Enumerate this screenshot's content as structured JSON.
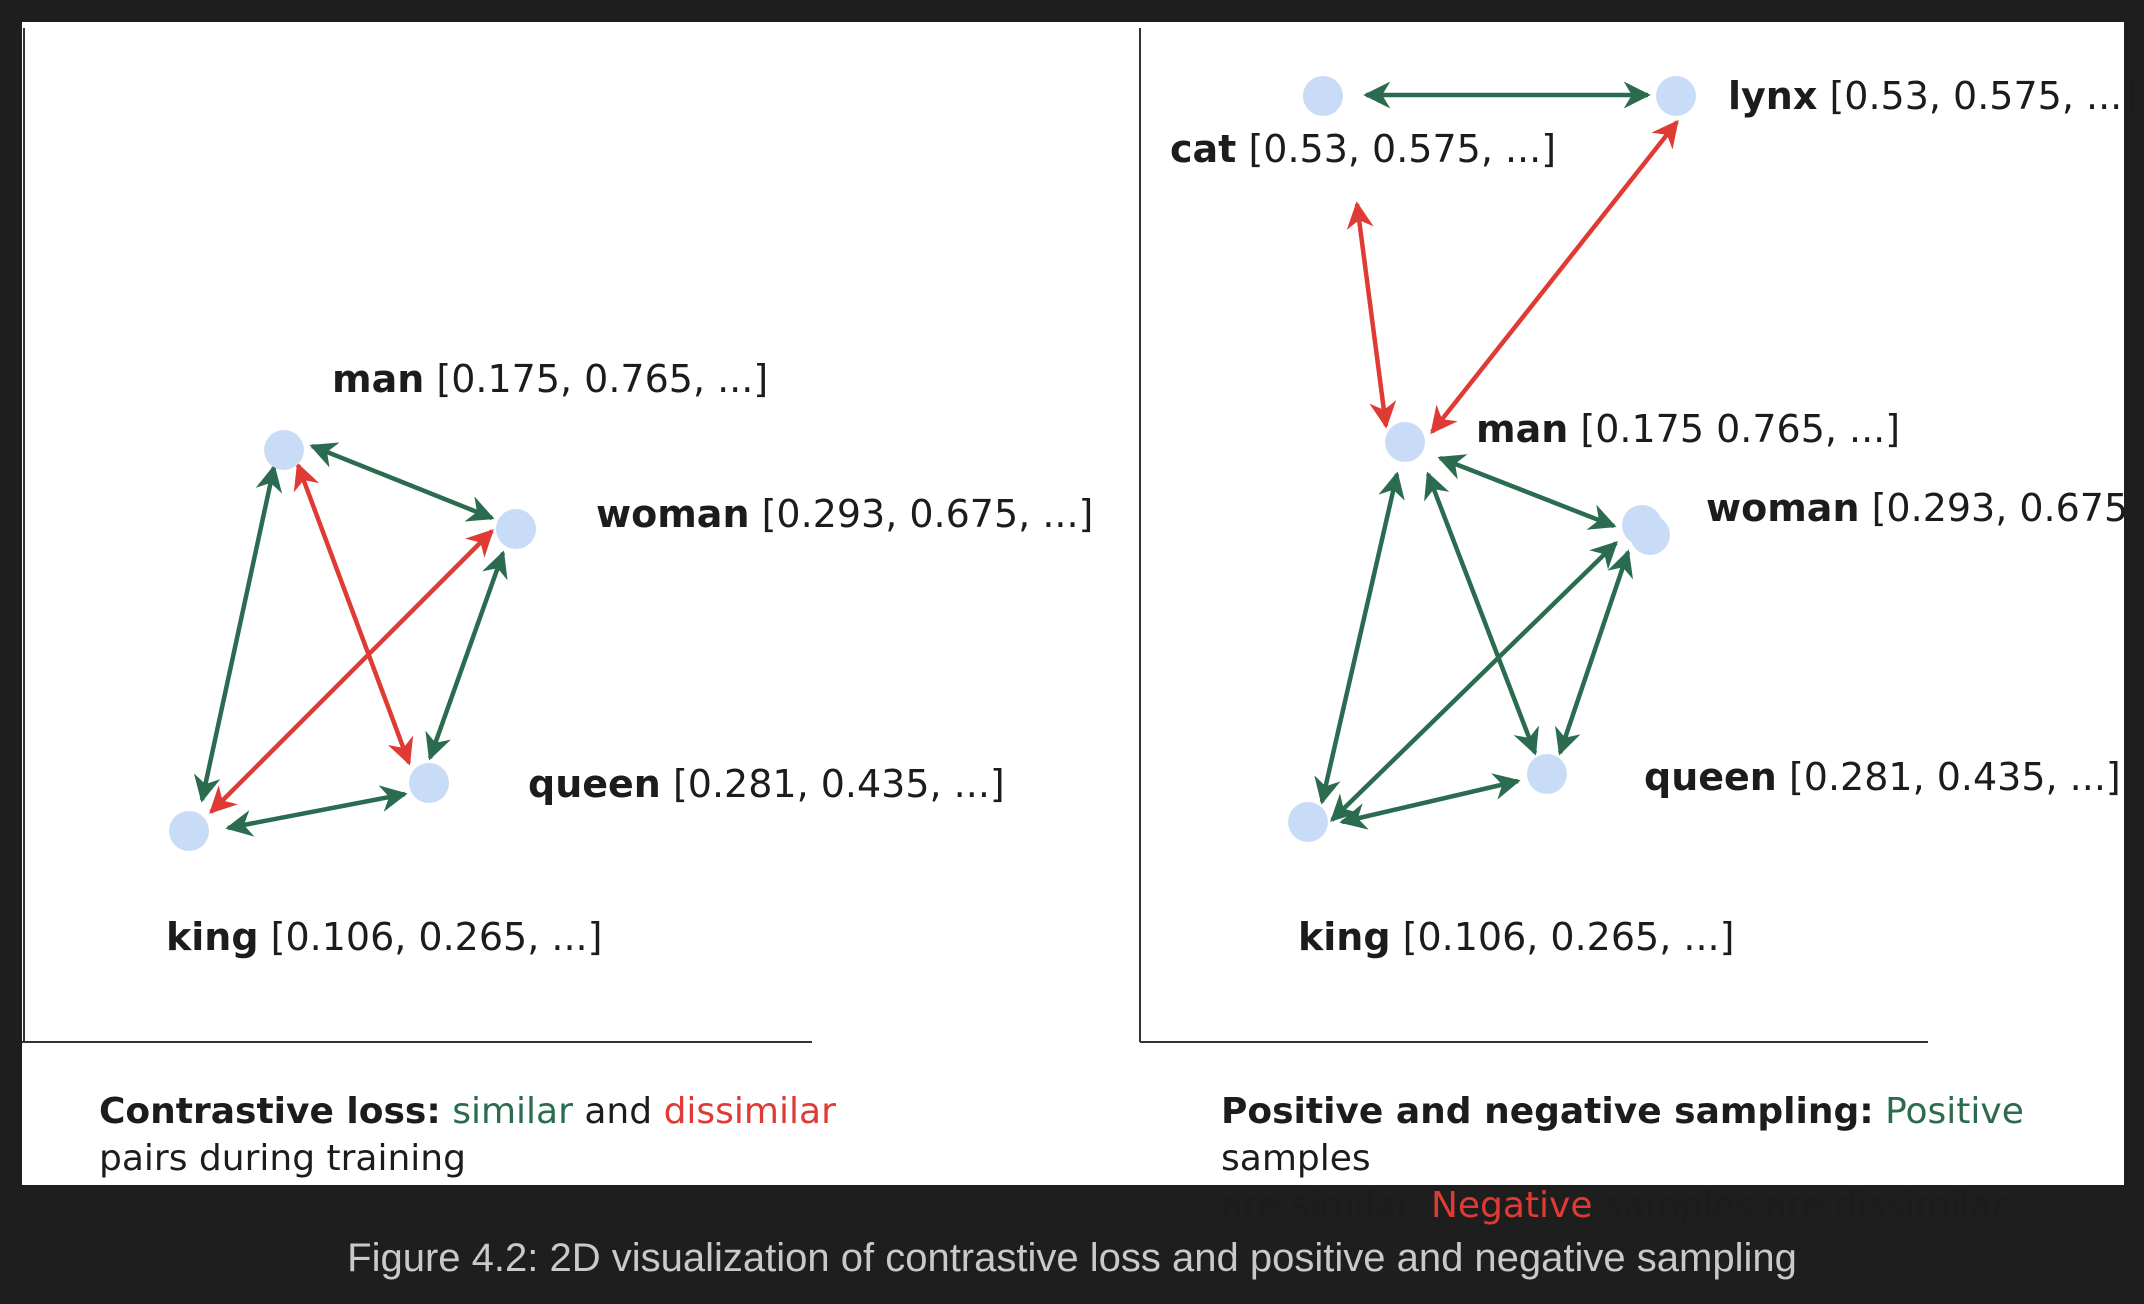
{
  "colors": {
    "similar": "#2b6b4f",
    "dissimilar": "#e03a34",
    "node": "#c8dbf7"
  },
  "left_panel": {
    "nodes": [
      {
        "id": "man",
        "word": "man",
        "vector": "[0.175, 0.765, ...]"
      },
      {
        "id": "woman",
        "word": "woman",
        "vector": "[0.293, 0.675, ...]"
      },
      {
        "id": "queen",
        "word": "queen",
        "vector": "[0.281, 0.435, ...]"
      },
      {
        "id": "king",
        "word": "king",
        "vector": "[0.106, 0.265, ...]"
      }
    ],
    "caption": {
      "title": "Contrastive loss:",
      "similar": "similar",
      "and": "and",
      "dissimilar": "dissimilar",
      "rest": "pairs during training"
    }
  },
  "right_panel": {
    "nodes": [
      {
        "id": "cat",
        "word": "cat",
        "vector": "[0.53, 0.575, ...]"
      },
      {
        "id": "lynx",
        "word": "lynx",
        "vector": "[0.53, 0.575, ...]"
      },
      {
        "id": "man",
        "word": "man",
        "vector": "[0.175 0.765, ...]"
      },
      {
        "id": "woman",
        "word": "woman",
        "vector": "[0.293, 0.675, ...]"
      },
      {
        "id": "queen",
        "word": "queen",
        "vector": "[0.281, 0.435, ...]"
      },
      {
        "id": "king",
        "word": "king",
        "vector": "[0.106, 0.265, ...]"
      }
    ],
    "caption": {
      "title": "Positive and negative sampling:",
      "positive": "Positive",
      "line1_rest": "samples",
      "line2_start": "are similar.",
      "negative": "Negative",
      "line2_rest": "samples are dissimilar"
    }
  },
  "figure_caption": "Figure 4.2: 2D visualization of contrastive loss and positive and negative sampling"
}
